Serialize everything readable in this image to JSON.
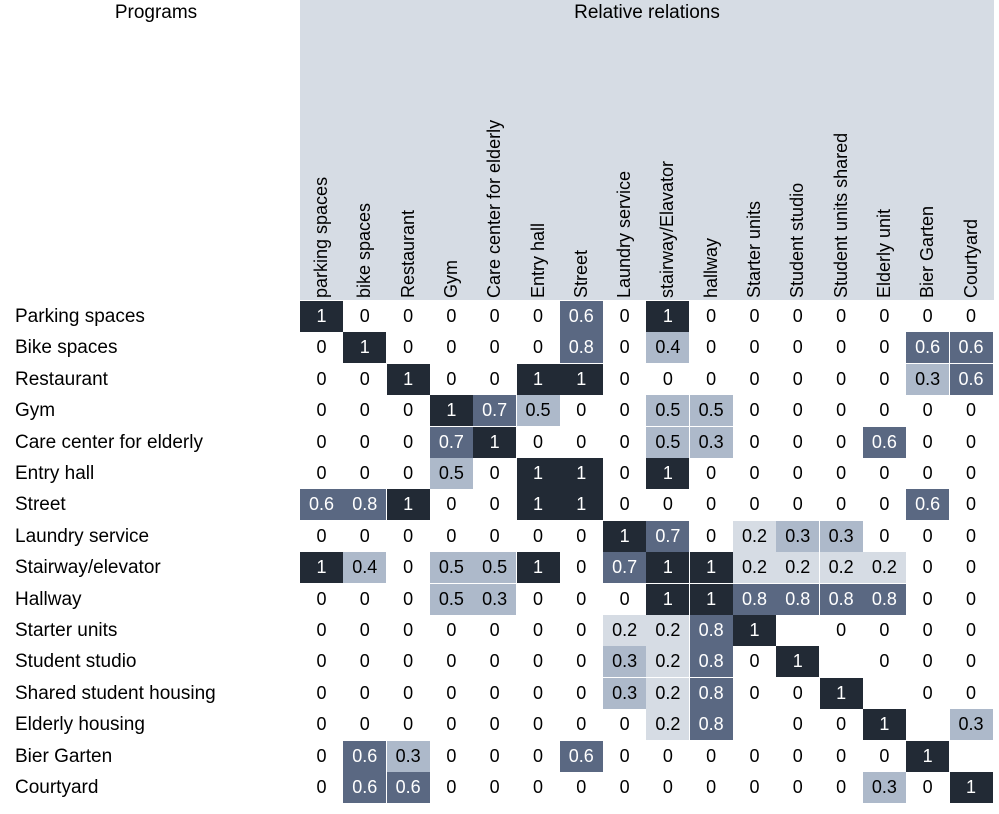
{
  "chart_data": {
    "type": "heatmap",
    "row_header": "Programs",
    "column_header": "Relative relations",
    "columns": [
      "parking spaces",
      "bike spaces",
      "Restaurant",
      "Gym",
      "Care center for elderly",
      "Entry hall",
      "Street",
      "Laundry service",
      "stairway/Elavator",
      "hallway",
      "Starter units",
      "Student studio",
      "Student units shared",
      "Elderly unit",
      "Bier Garten",
      "Courtyard"
    ],
    "rows": [
      "Parking spaces",
      "Bike spaces",
      "Restaurant",
      "Gym",
      "Care center for elderly",
      "Entry hall",
      "Street",
      "Laundry service",
      "Stairway/elevator",
      "Hallway",
      "Starter units",
      "Student studio",
      "Shared student housing",
      "Elderly housing",
      "Bier Garten",
      "Courtyard"
    ],
    "values": [
      [
        "1",
        "0",
        "0",
        "0",
        "0",
        "0",
        "0.6",
        "0",
        "1",
        "0",
        "0",
        "0",
        "0",
        "0",
        "0",
        "0"
      ],
      [
        "0",
        "1",
        "0",
        "0",
        "0",
        "0",
        "0.8",
        "0",
        "0.4",
        "0",
        "0",
        "0",
        "0",
        "0",
        "0.6",
        "0.6"
      ],
      [
        "0",
        "0",
        "1",
        "0",
        "0",
        "1",
        "1",
        "0",
        "0",
        "0",
        "0",
        "0",
        "0",
        "0",
        "0.3",
        "0.6"
      ],
      [
        "0",
        "0",
        "0",
        "1",
        "0.7",
        "0.5",
        "0",
        "0",
        "0.5",
        "0.5",
        "0",
        "0",
        "0",
        "0",
        "0",
        "0"
      ],
      [
        "0",
        "0",
        "0",
        "0.7",
        "1",
        "0",
        "0",
        "0",
        "0.5",
        "0.3",
        "0",
        "0",
        "0",
        "0.6",
        "0",
        "0"
      ],
      [
        "0",
        "0",
        "0",
        "0.5",
        "0",
        "1",
        "1",
        "0",
        "1",
        "0",
        "0",
        "0",
        "0",
        "0",
        "0",
        "0"
      ],
      [
        "0.6",
        "0.8",
        "1",
        "0",
        "0",
        "1",
        "1",
        "0",
        "0",
        "0",
        "0",
        "0",
        "0",
        "0",
        "0.6",
        "0"
      ],
      [
        "0",
        "0",
        "0",
        "0",
        "0",
        "0",
        "0",
        "1",
        "0.7",
        "0",
        "0.2",
        "0.3",
        "0.3",
        "0",
        "0",
        "0"
      ],
      [
        "1",
        "0.4",
        "0",
        "0.5",
        "0.5",
        "1",
        "0",
        "0.7",
        "1",
        "1",
        "0.2",
        "0.2",
        "0.2",
        "0.2",
        "0",
        "0"
      ],
      [
        "0",
        "0",
        "0",
        "0.5",
        "0.3",
        "0",
        "0",
        "0",
        "1",
        "1",
        "0.8",
        "0.8",
        "0.8",
        "0.8",
        "0",
        "0"
      ],
      [
        "0",
        "0",
        "0",
        "0",
        "0",
        "0",
        "0",
        "0.2",
        "0.2",
        "0.8",
        "1",
        "",
        "0",
        "0",
        "0",
        "0"
      ],
      [
        "0",
        "0",
        "0",
        "0",
        "0",
        "0",
        "0",
        "0.3",
        "0.2",
        "0.8",
        "0",
        "1",
        "",
        "0",
        "0",
        "0"
      ],
      [
        "0",
        "0",
        "0",
        "0",
        "0",
        "0",
        "0",
        "0.3",
        "0.2",
        "0.8",
        "0",
        "0",
        "1",
        "",
        "0",
        "0"
      ],
      [
        "0",
        "0",
        "0",
        "0",
        "0",
        "0",
        "0",
        "0",
        "0.2",
        "0.8",
        "",
        "0",
        "0",
        "1",
        "",
        "0.3"
      ],
      [
        "0",
        "0.6",
        "0.3",
        "0",
        "0",
        "0",
        "0.6",
        "0",
        "0",
        "0",
        "0",
        "0",
        "0",
        "0",
        "1",
        ""
      ],
      [
        "0",
        "0.6",
        "0.6",
        "0",
        "0",
        "0",
        "0",
        "0",
        "0",
        "0",
        "0",
        "0",
        "0",
        "0.3",
        "0",
        "1"
      ]
    ],
    "colors": {
      "header_band": "#d6dce4",
      "zero": "#ffffff",
      "low": "#d6dce4",
      "mid": "#adb9ca",
      "high": "#5a6882",
      "max": "#222a35"
    }
  }
}
